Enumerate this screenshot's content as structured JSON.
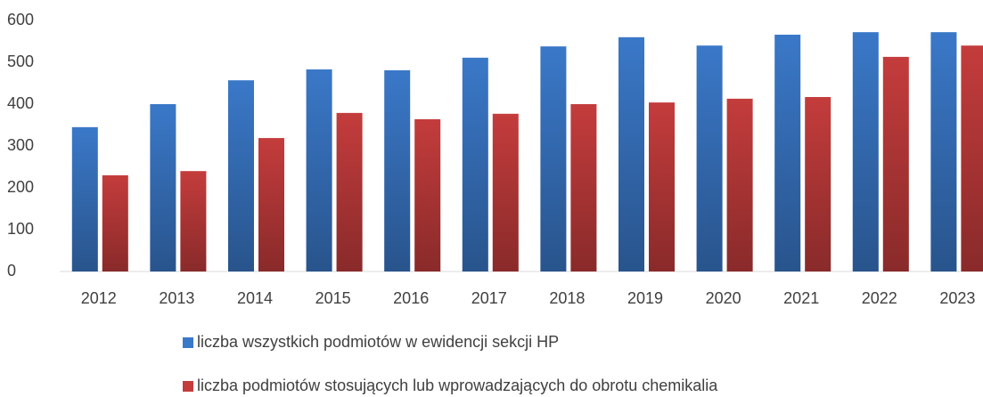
{
  "chart_data": {
    "type": "bar",
    "categories": [
      "2012",
      "2013",
      "2014",
      "2015",
      "2016",
      "2017",
      "2018",
      "2019",
      "2020",
      "2021",
      "2022",
      "2023"
    ],
    "series": [
      {
        "name": "liczba wszystkich podmiotów w ewidencji sekcji HP",
        "color": "#3a78c8",
        "values": [
          345,
          400,
          457,
          483,
          481,
          511,
          538,
          560,
          540,
          566,
          572,
          572
        ]
      },
      {
        "name": "liczba podmiotów stosujących lub wprowadzających do obrotu chemikalia",
        "color": "#c43c3c",
        "values": [
          230,
          240,
          319,
          379,
          364,
          377,
          400,
          404,
          413,
          417,
          513,
          540
        ]
      }
    ],
    "ylim": [
      0,
      600
    ],
    "yticks": [
      0,
      100,
      200,
      300,
      400,
      500,
      600
    ],
    "grid": false
  }
}
